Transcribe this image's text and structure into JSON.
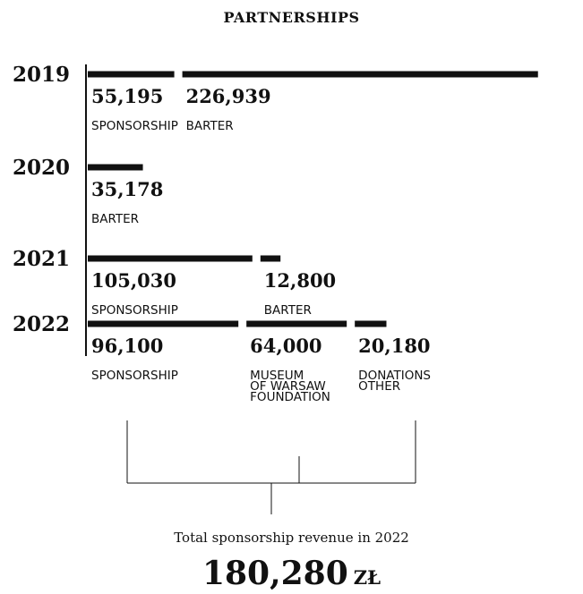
{
  "header": {
    "title": "PARTNERSHIPS"
  },
  "chart_data": {
    "type": "bar",
    "title": "PARTNERSHIPS",
    "orientation": "horizontal-stacked",
    "groups": [
      {
        "year": "2019",
        "segments": [
          {
            "value": 55195,
            "value_label": "55,195",
            "category": [
              "SPONSORSHIP"
            ]
          },
          {
            "value": 226939,
            "value_label": "226,939",
            "category": [
              "BARTER"
            ]
          }
        ]
      },
      {
        "year": "2020",
        "segments": [
          {
            "value": 35178,
            "value_label": "35,178",
            "category": [
              "BARTER"
            ]
          }
        ]
      },
      {
        "year": "2021",
        "segments": [
          {
            "value": 105030,
            "value_label": "105,030",
            "category": [
              "SPONSORSHIP"
            ]
          },
          {
            "value": 12800,
            "value_label": "12,800",
            "category": [
              "BARTER"
            ]
          }
        ]
      },
      {
        "year": "2022",
        "segments": [
          {
            "value": 96100,
            "value_label": "96,100",
            "category": [
              "SPONSORSHIP"
            ]
          },
          {
            "value": 64000,
            "value_label": "64,000",
            "category": [
              "MUSEUM",
              "OF WARSAW",
              "FOUNDATION"
            ]
          },
          {
            "value": 20180,
            "value_label": "20,180",
            "category": [
              "DONATIONS",
              "OTHER"
            ]
          }
        ]
      }
    ],
    "summary": {
      "label": "Total sponsorship revenue in 2022",
      "value": 180280,
      "value_label": "180,280",
      "unit": "ZŁ"
    }
  }
}
